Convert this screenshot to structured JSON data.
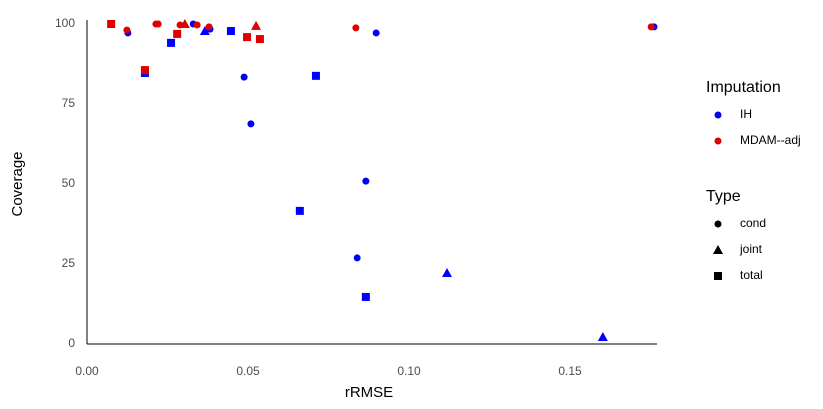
{
  "chart_data": {
    "type": "scatter",
    "x_label": "rRMSE",
    "y_label": "Coverage",
    "xlim": [
      0,
      0.177
    ],
    "ylim": [
      0,
      100
    ],
    "xticks": [
      {
        "value": 0,
        "label": "0.00"
      },
      {
        "value": 0.05,
        "label": "0.05"
      },
      {
        "value": 0.1,
        "label": "0.10"
      },
      {
        "value": 0.15,
        "label": "0.15"
      }
    ],
    "yticks": [
      0,
      25,
      50,
      75,
      100
    ],
    "grid": false,
    "legend_position": "right",
    "legends": [
      {
        "title": "Imputation",
        "entries": [
          {
            "name": "IH",
            "color": "#0000ff"
          },
          {
            "name": "MDAM--adj",
            "color": "#e00000"
          }
        ]
      },
      {
        "title": "Type",
        "entries": [
          {
            "name": "cond",
            "shape": "circle"
          },
          {
            "name": "joint",
            "shape": "triangle"
          },
          {
            "name": "total",
            "shape": "square"
          }
        ]
      }
    ],
    "series": [
      {
        "imputation": "IH",
        "type": "cond",
        "x": [
          0.0127,
          0.033,
          0.0488,
          0.0509,
          0.0898,
          0.0866,
          0.0839,
          0.1761,
          0.0382
        ],
        "y": [
          97.2,
          100,
          83.4,
          68.8,
          97.2,
          50.9,
          26.9,
          99.1,
          98.4
        ]
      },
      {
        "imputation": "IH",
        "type": "joint",
        "x": [
          0.0366,
          0.1118,
          0.1602
        ],
        "y": [
          97.8,
          22.2,
          2.2
        ]
      },
      {
        "imputation": "IH",
        "type": "total",
        "x": [
          0.018,
          0.0261,
          0.0447,
          0.0711,
          0.0661,
          0.0866
        ],
        "y": [
          84.7,
          94.1,
          97.8,
          83.8,
          41.6,
          14.7
        ]
      },
      {
        "imputation": "MDAM--adj",
        "type": "cond",
        "x": [
          0.0124,
          0.0214,
          0.0221,
          0.0289,
          0.0342,
          0.0379,
          0.0835,
          0.1752
        ],
        "y": [
          98.1,
          100,
          100,
          99.7,
          99.7,
          99.1,
          98.8,
          99.1
        ]
      },
      {
        "imputation": "MDAM--adj",
        "type": "joint",
        "x": [
          0.0304,
          0.0525
        ],
        "y": [
          100,
          99.4
        ]
      },
      {
        "imputation": "MDAM--adj",
        "type": "total",
        "x": [
          0.0075,
          0.018,
          0.028,
          0.0497,
          0.0537
        ],
        "y": [
          100,
          85.6,
          96.9,
          95.9,
          95.3
        ]
      }
    ]
  }
}
